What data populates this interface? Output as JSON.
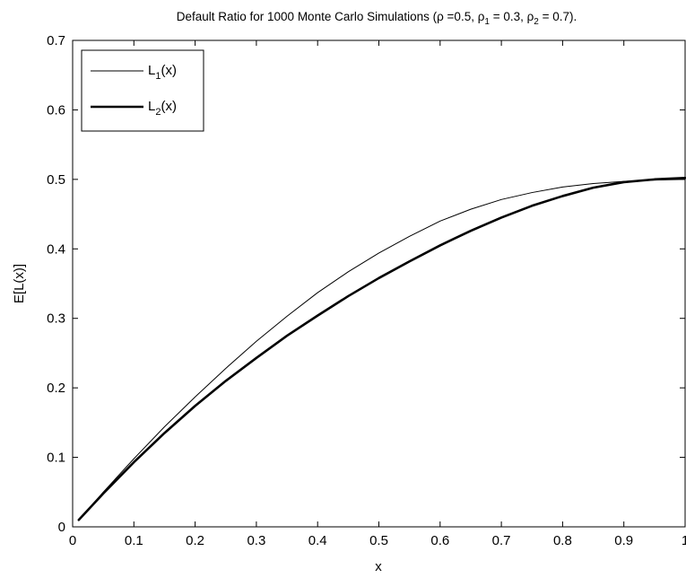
{
  "chart_data": {
    "type": "line",
    "title": {
      "prefix": "Default Ratio for 1000 Monte Carlo Simulations (ρ =0.5, ρ",
      "sub1": "1",
      "mid": " = 0.3, ρ",
      "sub2": "2",
      "suffix": " = 0.7)."
    },
    "xlabel": "x",
    "ylabel": "E[L(x)]",
    "xlim": [
      0,
      1
    ],
    "ylim": [
      0,
      0.7
    ],
    "xticks": [
      "0",
      "0.1",
      "0.2",
      "0.3",
      "0.4",
      "0.5",
      "0.6",
      "0.7",
      "0.8",
      "0.9",
      "1"
    ],
    "yticks": [
      "0",
      "0.1",
      "0.2",
      "0.3",
      "0.4",
      "0.5",
      "0.6",
      "0.7"
    ],
    "grid": false,
    "legend_position": "top-left",
    "series": [
      {
        "name_main": "L",
        "name_sub": "1",
        "name_suffix": "(x)",
        "color": "#000000",
        "width": "thin",
        "x": [
          0.01,
          0.05,
          0.1,
          0.15,
          0.2,
          0.25,
          0.3,
          0.35,
          0.4,
          0.45,
          0.5,
          0.55,
          0.6,
          0.65,
          0.7,
          0.75,
          0.8,
          0.85,
          0.9,
          0.95,
          1.0
        ],
        "y": [
          0.01,
          0.05,
          0.098,
          0.144,
          0.187,
          0.228,
          0.267,
          0.303,
          0.337,
          0.367,
          0.394,
          0.418,
          0.44,
          0.457,
          0.471,
          0.481,
          0.489,
          0.494,
          0.497,
          0.499,
          0.5
        ]
      },
      {
        "name_main": "L",
        "name_sub": "2",
        "name_suffix": "(x)",
        "color": "#000000",
        "width": "thick",
        "x": [
          0.01,
          0.05,
          0.1,
          0.15,
          0.2,
          0.25,
          0.3,
          0.35,
          0.4,
          0.45,
          0.5,
          0.55,
          0.6,
          0.65,
          0.7,
          0.75,
          0.8,
          0.85,
          0.9,
          0.95,
          1.0
        ],
        "y": [
          0.01,
          0.048,
          0.093,
          0.135,
          0.174,
          0.21,
          0.243,
          0.275,
          0.304,
          0.332,
          0.358,
          0.382,
          0.405,
          0.426,
          0.445,
          0.462,
          0.476,
          0.488,
          0.496,
          0.5,
          0.502
        ]
      }
    ]
  }
}
